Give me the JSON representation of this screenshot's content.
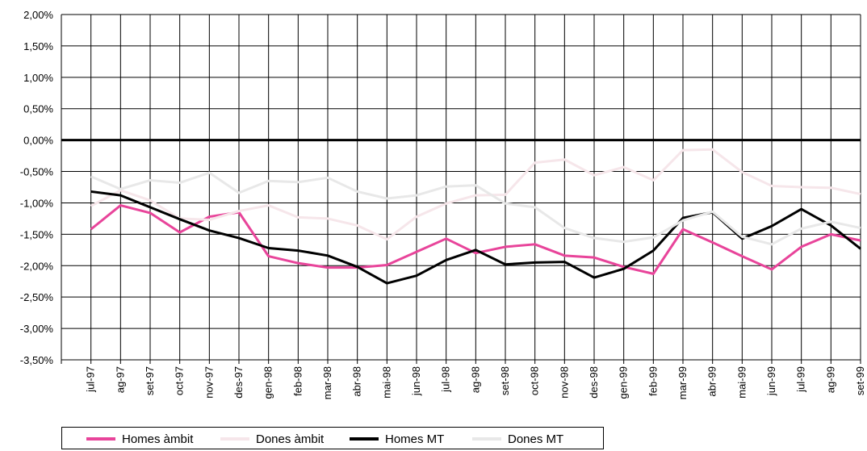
{
  "chart_data": {
    "type": "line",
    "categories": [
      "jul-97",
      "ag-97",
      "set-97",
      "oct-97",
      "nov-97",
      "des-97",
      "gen-98",
      "feb-98",
      "mar-98",
      "abr-98",
      "mai-98",
      "jun-98",
      "jul-98",
      "ag-98",
      "set-98",
      "oct-98",
      "nov-98",
      "des-98",
      "gen-99",
      "feb-99",
      "mar-99",
      "abr-99",
      "mai-99",
      "jun-99",
      "jul-99",
      "ag-99",
      "set-99"
    ],
    "ylim": [
      -3.5,
      2.0
    ],
    "yticks": [
      2.0,
      1.5,
      1.0,
      0.5,
      0.0,
      -0.5,
      -1.0,
      -1.5,
      -2.0,
      -2.5,
      -3.0,
      -3.5
    ],
    "ytick_labels": [
      "2,00%",
      "1,50%",
      "1,00%",
      "0,50%",
      "0,00%",
      "-0,50%",
      "-1,00%",
      "-1,50%",
      "-2,00%",
      "-2,50%",
      "-3,00%",
      "-3,50%"
    ],
    "grid": true,
    "legend_position": "bottom",
    "series": [
      {
        "name": "Homes àmbit",
        "color": "#e8449a",
        "width": 3,
        "values": [
          -1.42,
          -1.04,
          -1.16,
          -1.47,
          -1.22,
          -1.15,
          -1.85,
          -1.96,
          -2.03,
          -2.03,
          -1.99,
          -1.78,
          -1.57,
          -1.8,
          -1.7,
          -1.66,
          -1.84,
          -1.87,
          -2.02,
          -2.13,
          -1.42,
          -1.63,
          -1.85,
          -2.06,
          -1.7,
          -1.5,
          -1.6
        ]
      },
      {
        "name": "Dones àmbit",
        "color": "#f6e6ea",
        "width": 3,
        "values": [
          -1.05,
          -0.8,
          -0.96,
          -1.25,
          -1.27,
          -1.13,
          -1.04,
          -1.23,
          -1.25,
          -1.36,
          -1.58,
          -1.22,
          -1.01,
          -0.88,
          -0.87,
          -0.36,
          -0.31,
          -0.56,
          -0.43,
          -0.64,
          -0.16,
          -0.15,
          -0.51,
          -0.73,
          -0.75,
          -0.76,
          -0.86
        ]
      },
      {
        "name": "Homes MT",
        "color": "#000000",
        "width": 3,
        "values": [
          -0.82,
          -0.88,
          -1.07,
          -1.26,
          -1.44,
          -1.56,
          -1.72,
          -1.76,
          -1.84,
          -2.02,
          -2.28,
          -2.16,
          -1.91,
          -1.75,
          -1.98,
          -1.95,
          -1.94,
          -2.19,
          -2.05,
          -1.76,
          -1.24,
          -1.15,
          -1.57,
          -1.37,
          -1.1,
          -1.36,
          -1.73
        ]
      },
      {
        "name": "Dones MT",
        "color": "#e8e8e8",
        "width": 3,
        "values": [
          -0.58,
          -0.78,
          -0.64,
          -0.68,
          -0.52,
          -0.84,
          -0.65,
          -0.67,
          -0.6,
          -0.82,
          -0.93,
          -0.88,
          -0.74,
          -0.72,
          -1.01,
          -1.07,
          -1.4,
          -1.56,
          -1.62,
          -1.55,
          -1.28,
          -1.14,
          -1.54,
          -1.66,
          -1.41,
          -1.3,
          -1.4
        ]
      }
    ]
  }
}
